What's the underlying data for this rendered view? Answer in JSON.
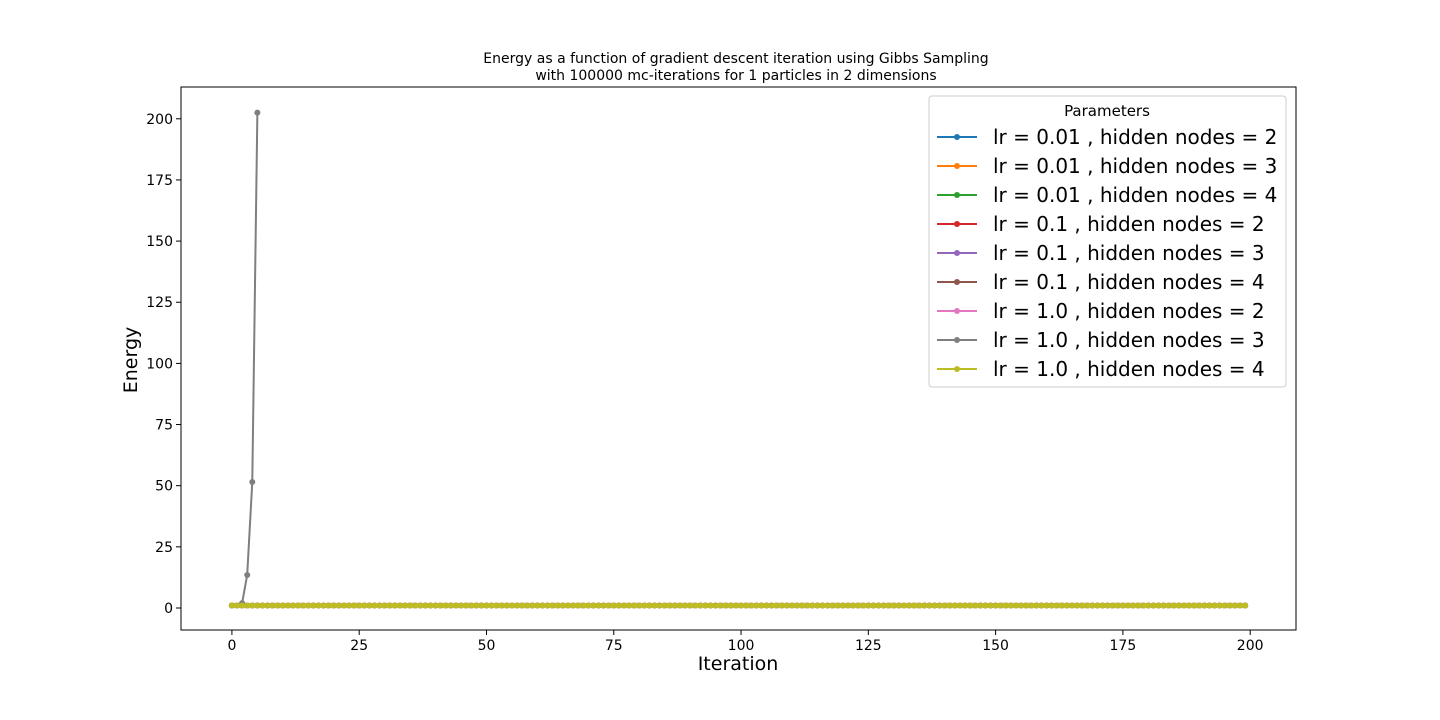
{
  "chart_data": {
    "type": "line",
    "title": "Energy as a function of gradient descent iteration using Gibbs Sampling",
    "subtitle": "with 100000 mc-iterations for 1 particles in 2 dimensions",
    "xlabel": "Iteration",
    "ylabel": "Energy",
    "xlim": [
      -10,
      209
    ],
    "ylim": [
      -9,
      213
    ],
    "xticks": [
      0,
      25,
      50,
      75,
      100,
      125,
      150,
      175,
      200
    ],
    "yticks": [
      0,
      25,
      50,
      75,
      100,
      125,
      150,
      175,
      200
    ],
    "grid": false,
    "legend": {
      "title": "Parameters",
      "placement": "top-right"
    },
    "series": [
      {
        "name": "lr = 0.01 , hidden nodes = 2",
        "color": "#1f77b4",
        "x_range": [
          0,
          199
        ],
        "value": 1.0
      },
      {
        "name": "lr = 0.01 , hidden nodes = 3",
        "color": "#ff7f0e",
        "x_range": [
          0,
          199
        ],
        "value": 1.0
      },
      {
        "name": "lr = 0.01 , hidden nodes = 4",
        "color": "#2ca02c",
        "x_range": [
          0,
          199
        ],
        "value": 1.0
      },
      {
        "name": "lr = 0.1 , hidden nodes = 2",
        "color": "#d62728",
        "x_range": [
          0,
          199
        ],
        "value": 1.0
      },
      {
        "name": "lr = 0.1 , hidden nodes = 3",
        "color": "#9467bd",
        "x_range": [
          0,
          199
        ],
        "value": 1.0
      },
      {
        "name": "lr = 0.1 , hidden nodes = 4",
        "color": "#8c564b",
        "x_range": [
          0,
          199
        ],
        "value": 1.0
      },
      {
        "name": "lr = 1.0 , hidden nodes = 2",
        "color": "#e377c2",
        "x_range": [
          0,
          199
        ],
        "value": 1.0
      },
      {
        "name": "lr = 1.0 , hidden nodes = 3",
        "color": "#7f7f7f",
        "x": [
          0,
          1,
          2,
          3,
          4,
          5
        ],
        "values": [
          1.0,
          1.0,
          2.0,
          13.5,
          51.5,
          202.5
        ]
      },
      {
        "name": "lr = 1.0 , hidden nodes = 4",
        "color": "#bcbd22",
        "x_range": [
          0,
          199
        ],
        "value": 1.0
      }
    ]
  }
}
